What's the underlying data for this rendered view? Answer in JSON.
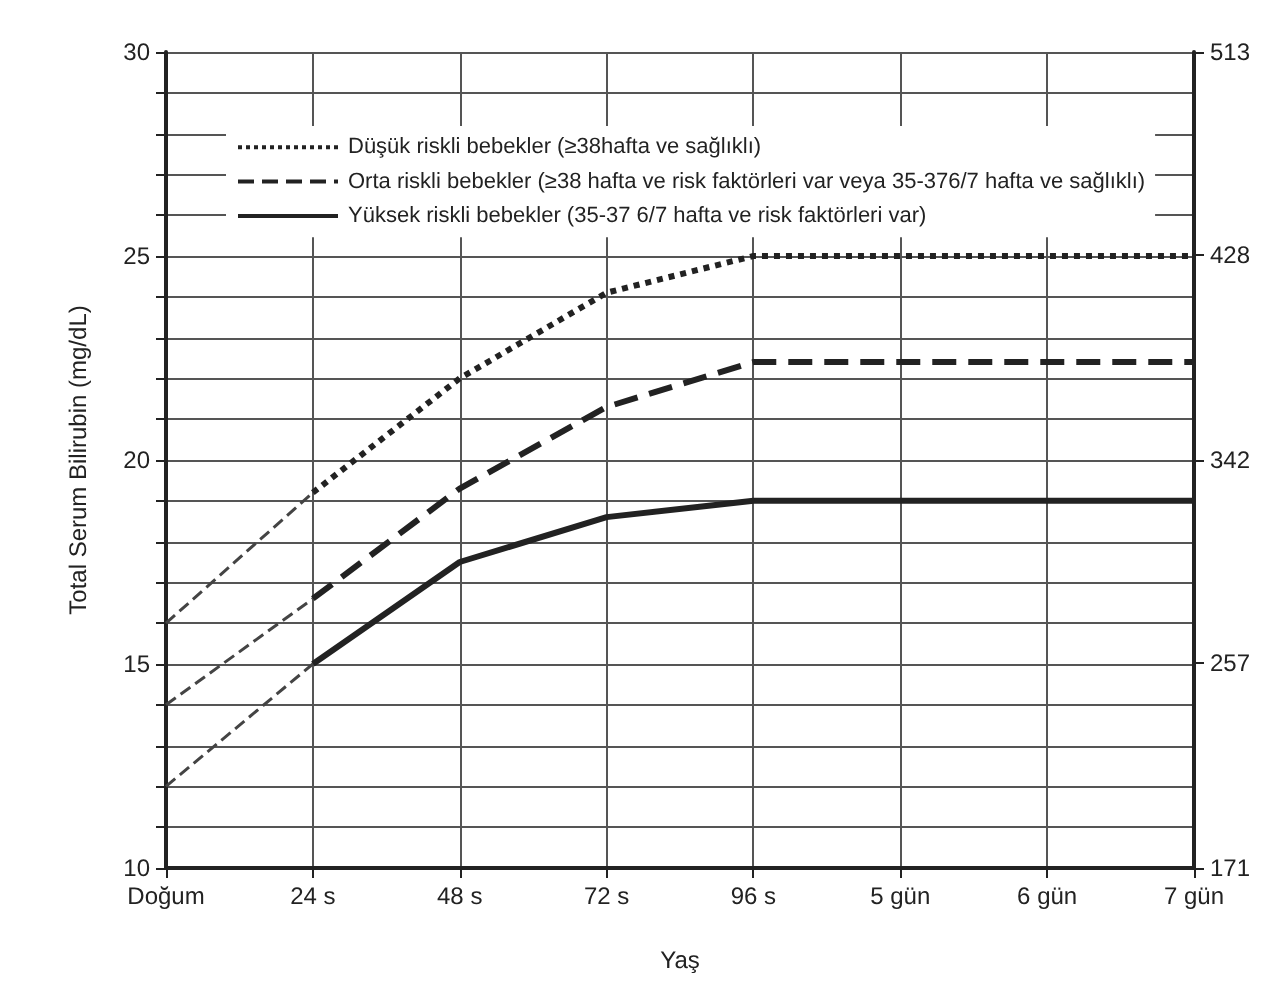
{
  "chart_data": {
    "type": "line",
    "xlabel": "Yaş",
    "ylabel": "Total Serum Bilirubin (mg/dL)",
    "categories": [
      "Doğum",
      "24 s",
      "48 s",
      "72 s",
      "96 s",
      "5 gün",
      "6 gün",
      "7 gün"
    ],
    "ylim": [
      10,
      30
    ],
    "yticks": [
      10,
      {
        "value": 11,
        "label": null
      },
      {
        "value": 12,
        "label": null
      },
      {
        "value": 13,
        "label": null
      },
      {
        "value": 14,
        "label": null
      },
      15,
      {
        "value": 16,
        "label": null
      },
      {
        "value": 17,
        "label": null
      },
      {
        "value": 18,
        "label": null
      },
      {
        "value": 19,
        "label": null
      },
      20,
      {
        "value": 21,
        "label": null
      },
      {
        "value": 22,
        "label": null
      },
      {
        "value": 23,
        "label": null
      },
      {
        "value": 24,
        "label": null
      },
      25,
      {
        "value": 26,
        "label": null
      },
      {
        "value": 27,
        "label": null
      },
      {
        "value": 28,
        "label": null
      },
      {
        "value": 29,
        "label": null
      },
      30
    ],
    "y2lim": [
      171,
      513
    ],
    "y2ticks": [
      171,
      257,
      342,
      428,
      513
    ],
    "grid": true,
    "legend": "top left",
    "marker": "none",
    "series": [
      {
        "name": "Düşük riskli bebekler (≥38hafta ve sağlıklı)",
        "color": "#222222",
        "line_style": "dotted",
        "values": [
          null,
          19.2,
          22,
          24.1,
          25,
          25,
          25,
          25
        ]
      },
      {
        "name": "Orta riskli bebekler (≥38 hafta ve risk faktörleri var veya 35-376/7 hafta ve sağlıklı)",
        "color": "#222222",
        "line_style": "dashed",
        "values": [
          null,
          16.6,
          19.3,
          21.3,
          22.4,
          22.4,
          22.4,
          22.4
        ]
      },
      {
        "name": "Yüksek riskli bebekler (35-37 6/7 hafta ve risk faktörleri var)",
        "color": "#222222",
        "line_style": "solid",
        "values": [
          null,
          15,
          17.5,
          18.6,
          19,
          19,
          19,
          19
        ]
      },
      {
        "color": "#444444",
        "line_style": "dashed",
        "values": [
          16,
          19.2,
          null,
          null,
          null,
          null,
          null,
          null
        ]
      },
      {
        "color": "#444444",
        "line_style": "dashed",
        "values": [
          14,
          16.6,
          null,
          null,
          null,
          null,
          null,
          null
        ]
      },
      {
        "color": "#444444",
        "line_style": "dashed",
        "values": [
          12,
          15,
          null,
          null,
          null,
          null,
          null,
          null
        ]
      }
    ]
  }
}
